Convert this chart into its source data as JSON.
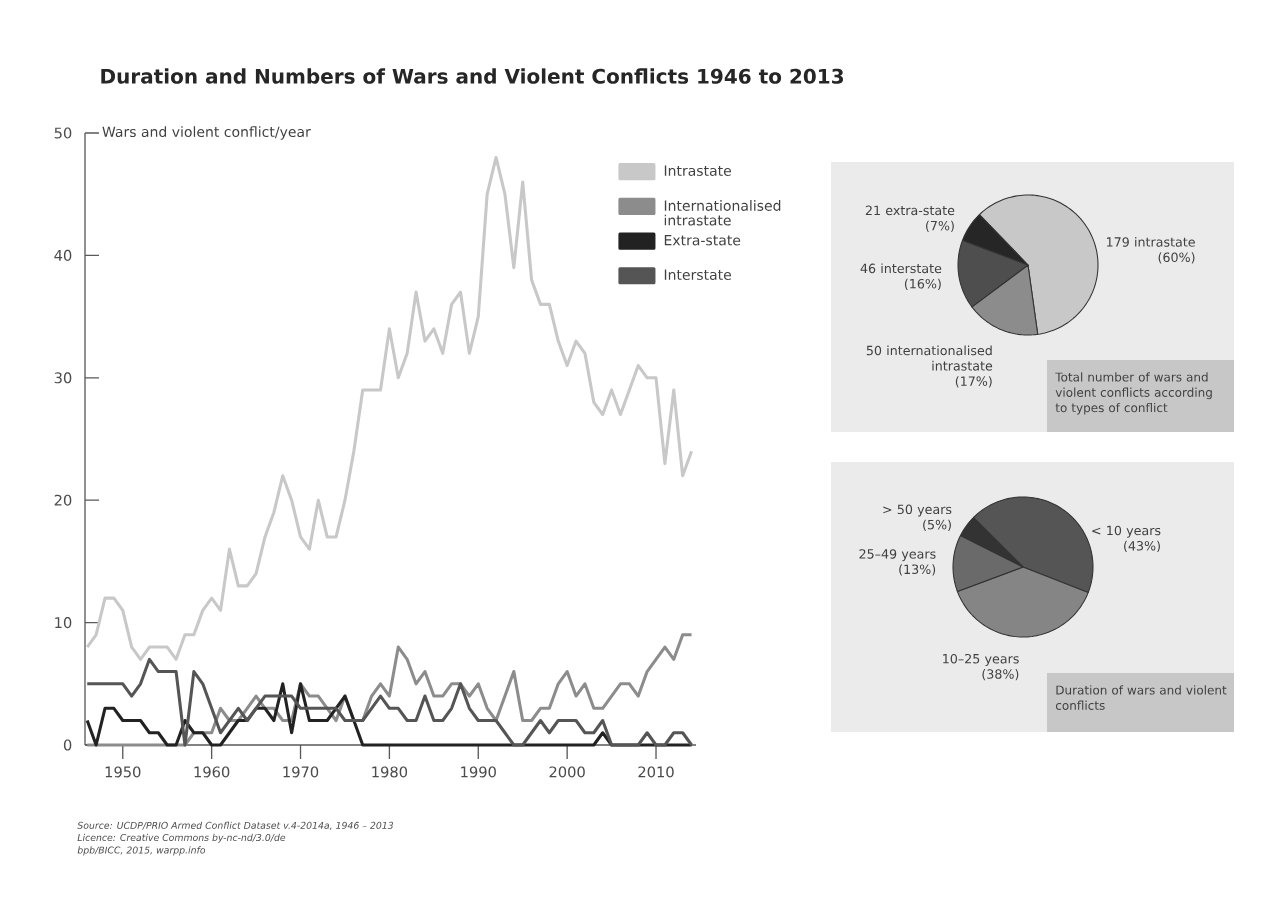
{
  "chart_data": [
    {
      "type": "line",
      "title": "Duration and Numbers of Wars and Violent Conflicts 1946 to 2013",
      "ylabel": "Wars and violent conflict/year",
      "x": [
        1946,
        1947,
        1948,
        1949,
        1950,
        1951,
        1952,
        1953,
        1954,
        1955,
        1956,
        1957,
        1958,
        1959,
        1960,
        1961,
        1962,
        1963,
        1964,
        1965,
        1966,
        1967,
        1968,
        1969,
        1970,
        1971,
        1972,
        1973,
        1974,
        1975,
        1976,
        1977,
        1978,
        1979,
        1980,
        1981,
        1982,
        1983,
        1984,
        1985,
        1986,
        1987,
        1988,
        1989,
        1990,
        1991,
        1992,
        1993,
        1994,
        1995,
        1996,
        1997,
        1998,
        1999,
        2000,
        2001,
        2002,
        2003,
        2004,
        2005,
        2006,
        2007,
        2008,
        2009,
        2010,
        2011,
        2012,
        2013,
        2014
      ],
      "series": [
        {
          "name": "Intrastate",
          "color": "#c8c8c8",
          "values": [
            8,
            9,
            12,
            12,
            11,
            8,
            7,
            8,
            8,
            8,
            7,
            9,
            9,
            11,
            12,
            11,
            16,
            13,
            13,
            14,
            17,
            19,
            22,
            20,
            17,
            16,
            20,
            17,
            17,
            20,
            24,
            29,
            29,
            29,
            34,
            30,
            32,
            37,
            33,
            34,
            32,
            36,
            37,
            32,
            35,
            45,
            48,
            45,
            39,
            46,
            38,
            36,
            36,
            33,
            31,
            33,
            32,
            28,
            27,
            29,
            27,
            29,
            31,
            30,
            30,
            23,
            29,
            22,
            24
          ]
        },
        {
          "name": "Internationalised intrastate",
          "color": "#8c8c8c",
          "values": [
            0,
            0,
            0,
            0,
            0,
            0,
            0,
            0,
            0,
            0,
            0,
            0,
            1,
            1,
            1,
            3,
            2,
            2,
            3,
            4,
            3,
            3,
            2,
            2,
            5,
            4,
            4,
            3,
            2,
            4,
            2,
            2,
            4,
            5,
            4,
            8,
            7,
            5,
            6,
            4,
            4,
            5,
            5,
            4,
            5,
            3,
            2,
            4,
            6,
            2,
            2,
            3,
            3,
            5,
            6,
            4,
            5,
            3,
            3,
            4,
            5,
            5,
            4,
            6,
            7,
            8,
            7,
            9,
            9
          ]
        },
        {
          "name": "Extra-state",
          "color": "#222222",
          "values": [
            2,
            0,
            3,
            3,
            2,
            2,
            2,
            1,
            1,
            0,
            0,
            2,
            1,
            1,
            0,
            0,
            1,
            2,
            2,
            3,
            3,
            2,
            5,
            1,
            5,
            2,
            2,
            2,
            3,
            4,
            2,
            0,
            0,
            0,
            0,
            0,
            0,
            0,
            0,
            0,
            0,
            0,
            0,
            0,
            0,
            0,
            0,
            0,
            0,
            0,
            0,
            0,
            0,
            0,
            0,
            0,
            0,
            0,
            1,
            0,
            0,
            0,
            0,
            0,
            0,
            0,
            0,
            0,
            0
          ]
        },
        {
          "name": "Interstate",
          "color": "#555555",
          "values": [
            5,
            5,
            5,
            5,
            5,
            4,
            5,
            7,
            6,
            6,
            6,
            0,
            6,
            5,
            3,
            1,
            2,
            3,
            2,
            3,
            4,
            4,
            4,
            4,
            3,
            3,
            3,
            3,
            3,
            2,
            2,
            2,
            3,
            4,
            3,
            3,
            2,
            2,
            4,
            2,
            2,
            3,
            5,
            3,
            2,
            2,
            2,
            1,
            0,
            0,
            1,
            2,
            1,
            2,
            2,
            2,
            1,
            1,
            2,
            0,
            0,
            0,
            0,
            1,
            0,
            0,
            1,
            1,
            0
          ]
        }
      ],
      "xlim": [
        1945.75,
        2014.5
      ],
      "xticks": [
        1950,
        1960,
        1970,
        1980,
        1990,
        2000,
        2010
      ],
      "ylim": [
        0,
        50
      ],
      "yticks": [
        0,
        10,
        20,
        30,
        40,
        50
      ],
      "legend": "top right",
      "annotations": [
        "Source: UCDP/PRIO Armed Conflict Dataset v.4-2014a, 1946 – 2013",
        "Licence: Creative Commons by-nc-nd/3.0/de",
        "bpb/BICC, 2015, warpp.info"
      ]
    },
    {
      "type": "pie",
      "title": "Total number of wars and violent conflicts according to types of conflict",
      "categories": [
        "179 intrastate",
        "50 internationalised intrastate",
        "46 interstate",
        "21 extra-state"
      ],
      "values": [
        60,
        17,
        16,
        7
      ],
      "value_labels": [
        "(60%)",
        "(17%)",
        "(16%)",
        "(7%)"
      ],
      "colors": [
        "#c8c8c8",
        "#8c8c8c",
        "#4e4e4e",
        "#262626"
      ]
    },
    {
      "type": "pie",
      "title": "Duration of wars and violent conflicts",
      "categories": [
        "< 10 years",
        "10–25 years",
        "25–49 years",
        "> 50 years"
      ],
      "values": [
        43,
        38,
        13,
        5
      ],
      "value_labels": [
        "(43%)",
        "(38%)",
        "(13%)",
        "(5%)"
      ],
      "colors": [
        "#555555",
        "#858585",
        "#6a6a6a",
        "#333333"
      ]
    }
  ]
}
